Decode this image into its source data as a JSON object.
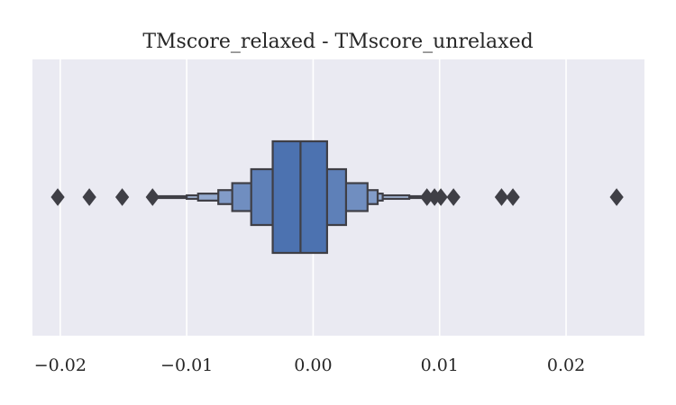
{
  "chart_data": {
    "type": "boxen",
    "title": "TMscore_relaxed - TMscore_unrelaxed",
    "xlabel": "",
    "ylabel": "",
    "xlim": [
      -0.0222,
      0.0262
    ],
    "xticks": [
      -0.02,
      -0.01,
      0.0,
      0.01,
      0.02
    ],
    "xtick_labels": [
      "−0.02",
      "−0.01",
      "0.00",
      "0.01",
      "0.02"
    ],
    "grid": true,
    "orientation": "horizontal",
    "median": -0.001,
    "levels": [
      {
        "low": -0.0032,
        "high": 0.0011,
        "half_height": 0.5
      },
      {
        "low": -0.0049,
        "high": 0.0026,
        "half_height": 0.25
      },
      {
        "low": -0.0064,
        "high": 0.0043,
        "half_height": 0.125
      },
      {
        "low": -0.0075,
        "high": 0.0051,
        "half_height": 0.0625
      },
      {
        "low": -0.0091,
        "high": 0.0055,
        "half_height": 0.03125
      },
      {
        "low": -0.01,
        "high": 0.0076,
        "half_height": 0.015625
      },
      {
        "low": -0.0127,
        "high": 0.009,
        "half_height": 0.0078
      }
    ],
    "outliers": [
      -0.0202,
      -0.0177,
      -0.0151,
      -0.0127,
      0.009,
      0.0096,
      0.0101,
      0.0111,
      0.0149,
      0.0158,
      0.024
    ],
    "colors": {
      "background": "#eaeaf2",
      "grid": "#ffffff",
      "base": "#4c72b0",
      "edge": "#3f3f46"
    }
  }
}
